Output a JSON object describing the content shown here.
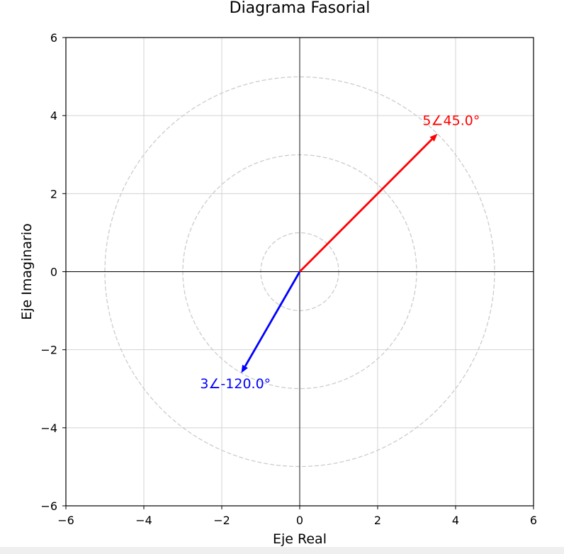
{
  "chart_data": {
    "type": "phasor",
    "title": "Diagrama Fasorial",
    "xlabel": "Eje Real",
    "ylabel": "Eje Imaginario",
    "xlim": [
      -6,
      6
    ],
    "ylim": [
      -6,
      6
    ],
    "xticks": [
      -6,
      -4,
      -2,
      0,
      2,
      4,
      6
    ],
    "yticks": [
      -6,
      -4,
      -2,
      0,
      2,
      4,
      6
    ],
    "xtick_labels": [
      "−6",
      "−4",
      "−2",
      "0",
      "2",
      "4",
      "6"
    ],
    "ytick_labels": [
      "−6",
      "−4",
      "−2",
      "0",
      "2",
      "4",
      "6"
    ],
    "grid": true,
    "reference_circles": [
      1,
      3,
      5
    ],
    "phasors": [
      {
        "magnitude": 5,
        "angle_deg": 45.0,
        "color": "#ff0000",
        "label": "5∠45.0°"
      },
      {
        "magnitude": 3,
        "angle_deg": -120.0,
        "color": "#0000ff",
        "label": "3∠-120.0°"
      }
    ]
  },
  "colors": {
    "grid": "#d3d3d3",
    "circles": "#cccccc",
    "axes": "#000000",
    "background": "#ffffff"
  }
}
